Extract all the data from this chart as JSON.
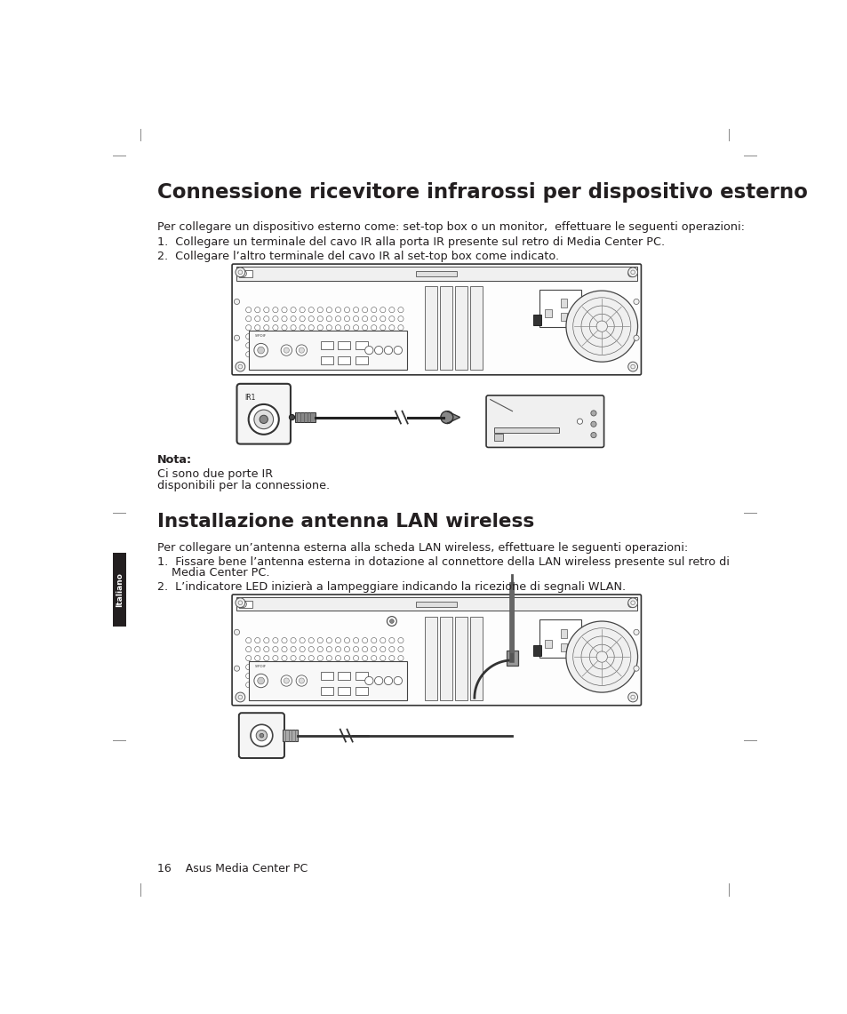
{
  "title": "Connessione ricevitore infrarossi per dispositivo esterno",
  "section2_title": "Installazione antenna LAN wireless",
  "body_intro1": "Per collegare un dispositivo esterno come: set-top box o un monitor,  effettuare le seguenti operazioni:",
  "step1": "1.  Collegare un terminale del cavo IR alla porta IR presente sul retro di Media Center PC.",
  "step2": "2.  Collegare l’altro terminale del cavo IR al set-top box come indicato.",
  "nota_label": "Nota:",
  "nota_text1": "Ci sono due porte IR",
  "nota_text2": "disponibili per la connessione.",
  "section2_intro": "Per collegare un’antenna esterna alla scheda LAN wireless, effettuare le seguenti operazioni:",
  "s2_step1_a": "1.  Fissare bene l’antenna esterna in dotazione al connettore della LAN wireless presente sul retro di",
  "s2_step1_b": "    Media Center PC.",
  "s2_step2": "2.  L’indicatore LED inizierà a lampeggiare indicando la ricezione di segnali WLAN.",
  "footer": "16    Asus Media Center PC",
  "bg_color": "#ffffff",
  "text_color": "#231f20",
  "title_color": "#231f20",
  "sidebar_color": "#231f20",
  "sidebar_text": "Italiano",
  "title_fontsize": 16.5,
  "body_fontsize": 9.2,
  "section2_title_fontsize": 15.5,
  "footer_fontsize": 9
}
